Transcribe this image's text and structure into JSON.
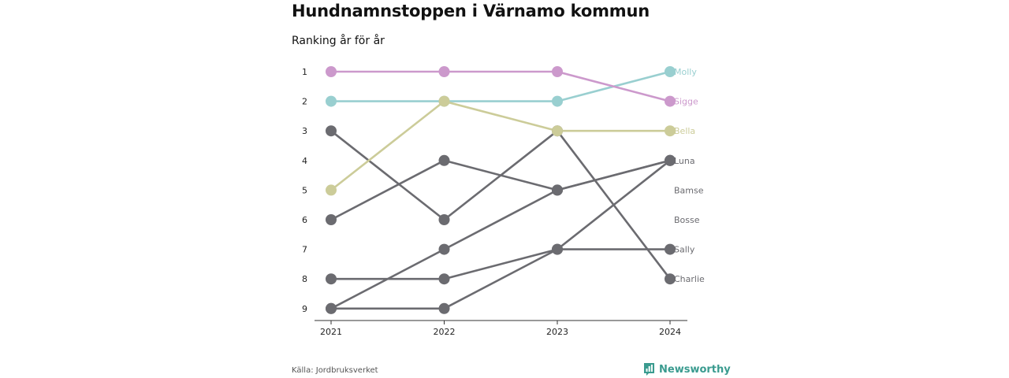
{
  "title": "Hundnamnstoppen i Värnamo kommun",
  "subtitle": "Ranking år för år",
  "source": "Källa: Jordbruksverket",
  "brand": {
    "name": "Newsworthy",
    "icon": "bar-chart-speech-bubble-icon",
    "color": "#3a9b8f"
  },
  "chart_data": {
    "type": "line",
    "title": "Hundnamnstoppen i Värnamo kommun",
    "subtitle": "Ranking år för år",
    "x": [
      "2021",
      "2022",
      "2023",
      "2024"
    ],
    "y_ticks": [
      1,
      2,
      3,
      4,
      5,
      6,
      7,
      8,
      9
    ],
    "y_reversed": true,
    "ylim": [
      1,
      9
    ],
    "grid": false,
    "legend": "end-labels",
    "series": [
      {
        "name": "Molly",
        "values": [
          2,
          2,
          2,
          1
        ],
        "color": "#99cfd0"
      },
      {
        "name": "Sigge",
        "values": [
          1,
          1,
          1,
          2
        ],
        "color": "#cc99cc"
      },
      {
        "name": "Bella",
        "values": [
          5,
          2,
          3,
          3
        ],
        "color": "#cccc99"
      },
      {
        "name": "Luna",
        "values": [
          6,
          4,
          5,
          4
        ],
        "color": "#6b6b70"
      },
      {
        "name": "Bamse",
        "values": [
          9,
          7,
          5,
          4
        ],
        "color": "#6b6b70"
      },
      {
        "name": "Bosse",
        "values": [
          9,
          9,
          7,
          4
        ],
        "color": "#6b6b70"
      },
      {
        "name": "Sally",
        "values": [
          8,
          8,
          7,
          7
        ],
        "color": "#6b6b70"
      },
      {
        "name": "Charlie",
        "values": [
          3,
          6,
          3,
          8
        ],
        "color": "#6b6b70"
      }
    ],
    "end_label_order": [
      "Molly",
      "Sigge",
      "Bella",
      "Luna",
      "Bamse",
      "Bosse",
      "Sally",
      "Charlie"
    ]
  }
}
